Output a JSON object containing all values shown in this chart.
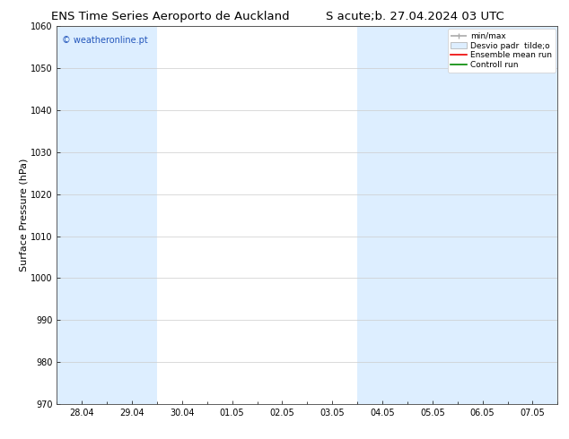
{
  "title_left": "ENS Time Series Aeroporto de Auckland",
  "title_right": "S acute;b. 27.04.2024 03 UTC",
  "ylabel": "Surface Pressure (hPa)",
  "watermark": "© weatheronline.pt",
  "ylim": [
    970,
    1060
  ],
  "yticks": [
    970,
    980,
    990,
    1000,
    1010,
    1020,
    1030,
    1040,
    1050,
    1060
  ],
  "xtick_labels": [
    "28.04",
    "29.04",
    "30.04",
    "01.05",
    "02.05",
    "03.05",
    "04.05",
    "05.05",
    "06.05",
    "07.05"
  ],
  "n_xticks": 10,
  "plot_bg": "#ffffff",
  "shaded_bands": [
    0,
    1,
    6,
    7,
    8,
    9
  ],
  "shaded_color": "#ddeeff",
  "legend_entries": [
    "min/max",
    "Desvio padr  tilde;o",
    "Ensemble mean run",
    "Controll run"
  ],
  "legend_colors_line": [
    "#aaaaaa",
    "#bbccdd",
    "#ff0000",
    "#00aa00"
  ],
  "title_fontsize": 9.5,
  "tick_fontsize": 7,
  "ylabel_fontsize": 8,
  "watermark_color": "#2255bb"
}
